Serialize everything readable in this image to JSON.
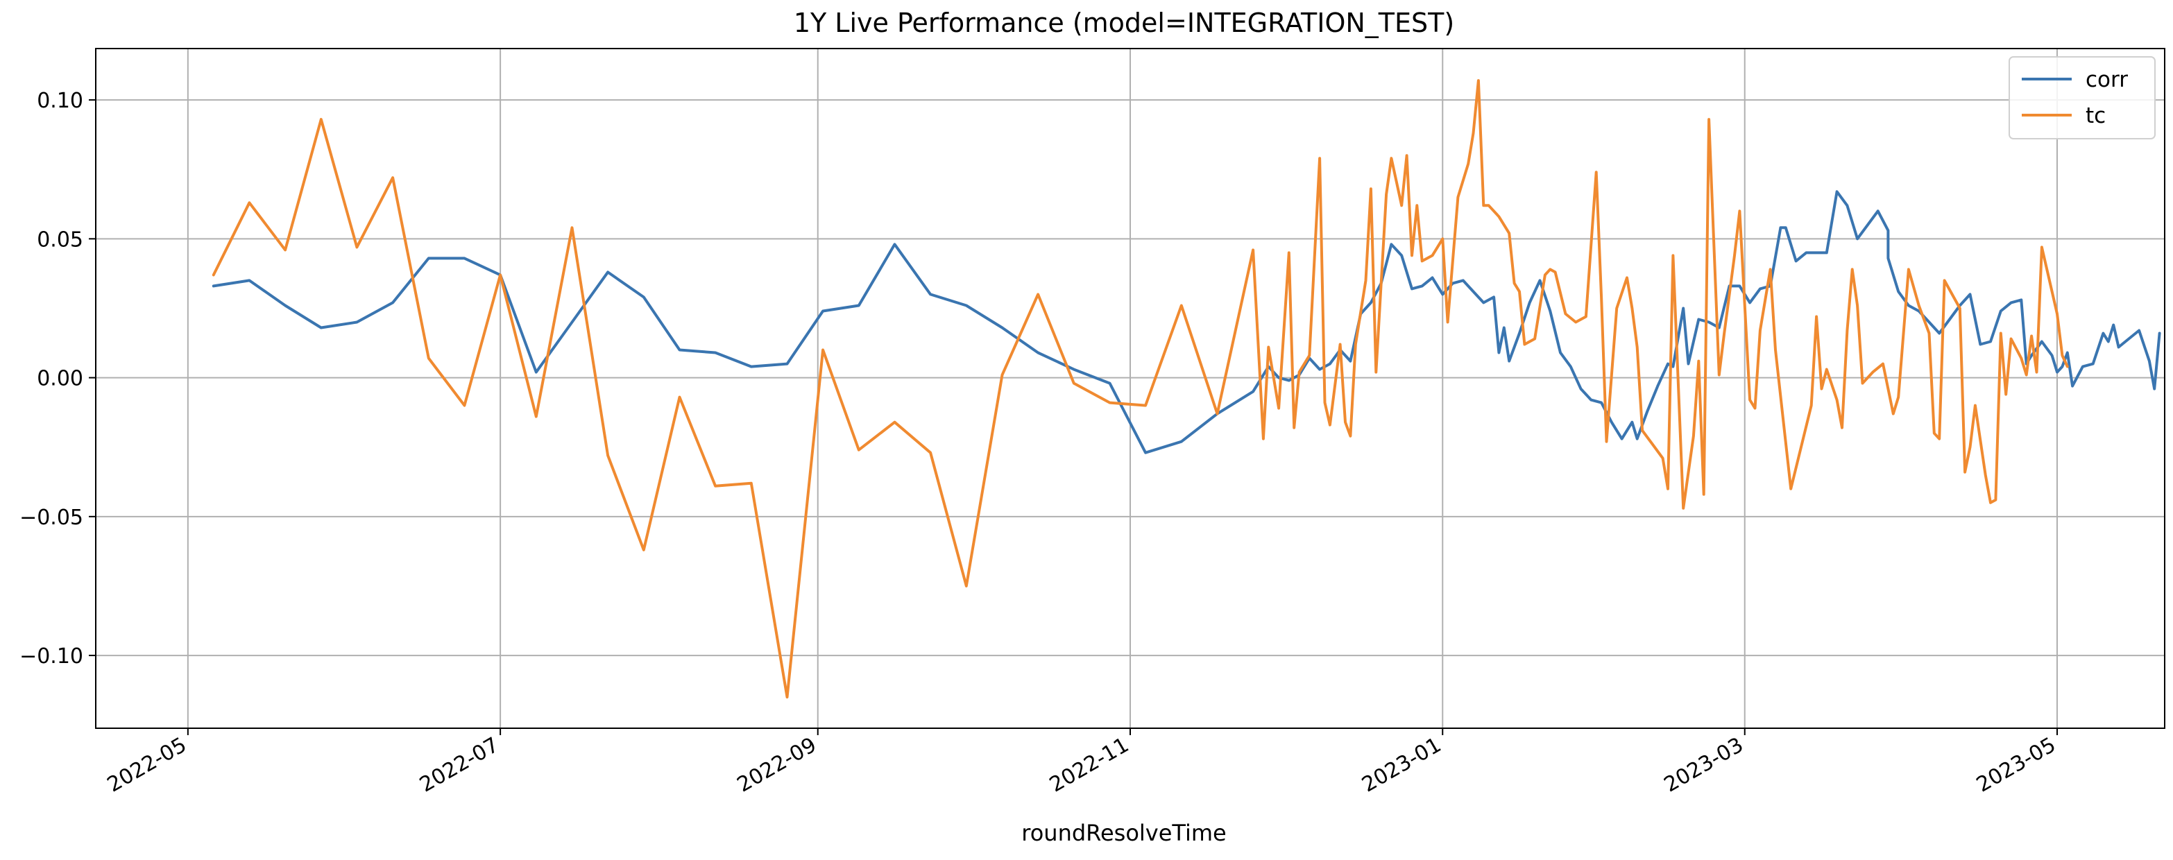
{
  "chart_data": {
    "type": "line",
    "title": "1Y Live Performance (model=INTEGRATION_TEST)",
    "xlabel": "roundResolveTime",
    "ylabel": "",
    "xlim": [
      "2022-04-13",
      "2023-05-22"
    ],
    "ylim": [
      -0.1262,
      0.1185
    ],
    "x_ticks": [
      "2022-05-01",
      "2022-07-01",
      "2022-09-01",
      "2022-11-01",
      "2023-01-01",
      "2023-03-01",
      "2023-05-01"
    ],
    "x_tick_labels": [
      "2022-05",
      "2022-07",
      "2022-09",
      "2022-11",
      "2023-01",
      "2023-03",
      "2023-05"
    ],
    "y_ticks": [
      -0.1,
      -0.05,
      0.0,
      0.05,
      0.1
    ],
    "y_tick_labels": [
      "−0.10",
      "−0.05",
      "0.00",
      "0.05",
      "0.10"
    ],
    "grid": true,
    "legend_position": "top-right",
    "series": [
      {
        "name": "corr",
        "color": "#3a75b0",
        "points": [
          [
            "2022-05-06",
            0.033
          ],
          [
            "2022-05-13",
            0.035
          ],
          [
            "2022-05-20",
            0.026
          ],
          [
            "2022-05-27",
            0.018
          ],
          [
            "2022-06-03",
            0.02
          ],
          [
            "2022-06-10",
            0.027
          ],
          [
            "2022-06-17",
            0.043
          ],
          [
            "2022-06-24",
            0.043
          ],
          [
            "2022-07-01",
            0.037
          ],
          [
            "2022-07-08",
            0.002
          ],
          [
            "2022-07-15",
            0.02
          ],
          [
            "2022-07-22",
            0.038
          ],
          [
            "2022-07-29",
            0.029
          ],
          [
            "2022-08-05",
            0.01
          ],
          [
            "2022-08-12",
            0.009
          ],
          [
            "2022-08-19",
            0.004
          ],
          [
            "2022-08-26",
            0.005
          ],
          [
            "2022-09-02",
            0.024
          ],
          [
            "2022-09-09",
            0.026
          ],
          [
            "2022-09-16",
            0.048
          ],
          [
            "2022-09-23",
            0.03
          ],
          [
            "2022-09-30",
            0.026
          ],
          [
            "2022-10-07",
            0.018
          ],
          [
            "2022-10-14",
            0.009
          ],
          [
            "2022-10-21",
            0.003
          ],
          [
            "2022-10-28",
            -0.002
          ],
          [
            "2022-11-04",
            -0.027
          ],
          [
            "2022-11-11",
            -0.023
          ],
          [
            "2022-11-18",
            -0.013
          ],
          [
            "2022-11-25",
            -0.005
          ],
          [
            "2022-11-28",
            0.004
          ],
          [
            "2022-11-30",
            0.0
          ],
          [
            "2022-12-02",
            -0.001
          ],
          [
            "2022-12-04",
            0.001
          ],
          [
            "2022-12-06",
            0.007
          ],
          [
            "2022-12-08",
            0.003
          ],
          [
            "2022-12-10",
            0.005
          ],
          [
            "2022-12-12",
            0.01
          ],
          [
            "2022-12-14",
            0.006
          ],
          [
            "2022-12-16",
            0.023
          ],
          [
            "2022-12-18",
            0.027
          ],
          [
            "2022-12-20",
            0.034
          ],
          [
            "2022-12-22",
            0.048
          ],
          [
            "2022-12-24",
            0.044
          ],
          [
            "2022-12-26",
            0.032
          ],
          [
            "2022-12-28",
            0.033
          ],
          [
            "2022-12-30",
            0.036
          ],
          [
            "2023-01-01",
            0.03
          ],
          [
            "2023-01-03",
            0.034
          ],
          [
            "2023-01-05",
            0.035
          ],
          [
            "2023-01-07",
            0.031
          ],
          [
            "2023-01-09",
            0.027
          ],
          [
            "2023-01-11",
            0.029
          ],
          [
            "2023-01-12",
            0.009
          ],
          [
            "2023-01-13",
            0.018
          ],
          [
            "2023-01-14",
            0.006
          ],
          [
            "2023-01-16",
            0.016
          ],
          [
            "2023-01-18",
            0.027
          ],
          [
            "2023-01-20",
            0.035
          ],
          [
            "2023-01-22",
            0.024
          ],
          [
            "2023-01-24",
            0.009
          ],
          [
            "2023-01-26",
            0.004
          ],
          [
            "2023-01-28",
            -0.004
          ],
          [
            "2023-01-30",
            -0.008
          ],
          [
            "2023-02-01",
            -0.009
          ],
          [
            "2023-02-03",
            -0.016
          ],
          [
            "2023-02-05",
            -0.022
          ],
          [
            "2023-02-07",
            -0.016
          ],
          [
            "2023-02-08",
            -0.022
          ],
          [
            "2023-02-10",
            -0.012
          ],
          [
            "2023-02-12",
            -0.003
          ],
          [
            "2023-02-14",
            0.005
          ],
          [
            "2023-02-15",
            0.004
          ],
          [
            "2023-02-17",
            0.025
          ],
          [
            "2023-02-18",
            0.005
          ],
          [
            "2023-02-20",
            0.021
          ],
          [
            "2023-02-22",
            0.02
          ],
          [
            "2023-02-24",
            0.018
          ],
          [
            "2023-02-26",
            0.033
          ],
          [
            "2023-02-28",
            0.033
          ],
          [
            "2023-03-02",
            0.027
          ],
          [
            "2023-03-04",
            0.032
          ],
          [
            "2023-03-06",
            0.033
          ],
          [
            "2023-03-08",
            0.054
          ],
          [
            "2023-03-09",
            0.054
          ],
          [
            "2023-03-11",
            0.042
          ],
          [
            "2023-03-13",
            0.045
          ],
          [
            "2023-03-15",
            0.045
          ],
          [
            "2023-03-17",
            0.045
          ],
          [
            "2023-03-19",
            0.067
          ],
          [
            "2023-03-21",
            0.062
          ],
          [
            "2023-03-23",
            0.05
          ],
          [
            "2023-03-25",
            0.055
          ],
          [
            "2023-03-27",
            0.06
          ],
          [
            "2023-03-29",
            0.053
          ],
          [
            "2023-03-29",
            0.043
          ],
          [
            "2023-03-31",
            0.031
          ],
          [
            "2023-04-02",
            0.026
          ],
          [
            "2023-04-04",
            0.024
          ],
          [
            "2023-04-06",
            0.02
          ],
          [
            "2023-04-08",
            0.016
          ],
          [
            "2023-04-10",
            0.021
          ],
          [
            "2023-04-12",
            0.026
          ],
          [
            "2023-04-14",
            0.03
          ],
          [
            "2023-04-16",
            0.012
          ],
          [
            "2023-04-18",
            0.013
          ],
          [
            "2023-04-20",
            0.024
          ],
          [
            "2023-04-22",
            0.027
          ],
          [
            "2023-04-24",
            0.028
          ],
          [
            "2023-04-25",
            0.005
          ],
          [
            "2023-04-26",
            0.008
          ],
          [
            "2023-04-28",
            0.013
          ],
          [
            "2023-04-30",
            0.008
          ],
          [
            "2023-05-01",
            0.002
          ],
          [
            "2023-05-02",
            0.004
          ],
          [
            "2023-05-03",
            0.009
          ],
          [
            "2023-05-04",
            -0.003
          ],
          [
            "2023-05-06",
            0.004
          ],
          [
            "2023-05-08",
            0.005
          ],
          [
            "2023-05-10",
            0.016
          ],
          [
            "2023-05-11",
            0.013
          ],
          [
            "2023-05-12",
            0.019
          ],
          [
            "2023-05-13",
            0.011
          ],
          [
            "2023-05-15",
            0.014
          ],
          [
            "2023-05-17",
            0.017
          ],
          [
            "2023-05-19",
            0.006
          ],
          [
            "2023-05-20",
            -0.004
          ],
          [
            "2023-05-21",
            0.016
          ]
        ]
      },
      {
        "name": "tc",
        "color": "#f08a30",
        "points": [
          [
            "2022-05-06",
            0.037
          ],
          [
            "2022-05-13",
            0.063
          ],
          [
            "2022-05-20",
            0.046
          ],
          [
            "2022-05-27",
            0.093
          ],
          [
            "2022-06-03",
            0.047
          ],
          [
            "2022-06-10",
            0.072
          ],
          [
            "2022-06-17",
            0.007
          ],
          [
            "2022-06-24",
            -0.01
          ],
          [
            "2022-07-01",
            0.037
          ],
          [
            "2022-07-08",
            -0.014
          ],
          [
            "2022-07-15",
            0.054
          ],
          [
            "2022-07-22",
            -0.028
          ],
          [
            "2022-07-29",
            -0.062
          ],
          [
            "2022-08-05",
            -0.007
          ],
          [
            "2022-08-12",
            -0.039
          ],
          [
            "2022-08-19",
            -0.038
          ],
          [
            "2022-08-26",
            -0.115
          ],
          [
            "2022-09-02",
            0.01
          ],
          [
            "2022-09-09",
            -0.026
          ],
          [
            "2022-09-16",
            -0.016
          ],
          [
            "2022-09-23",
            -0.027
          ],
          [
            "2022-09-30",
            -0.075
          ],
          [
            "2022-10-07",
            0.001
          ],
          [
            "2022-10-14",
            0.03
          ],
          [
            "2022-10-21",
            -0.002
          ],
          [
            "2022-10-28",
            -0.009
          ],
          [
            "2022-11-04",
            -0.01
          ],
          [
            "2022-11-11",
            0.026
          ],
          [
            "2022-11-18",
            -0.013
          ],
          [
            "2022-11-25",
            0.046
          ],
          [
            "2022-11-27",
            -0.022
          ],
          [
            "2022-11-28",
            0.011
          ],
          [
            "2022-11-30",
            -0.011
          ],
          [
            "2022-12-02",
            0.045
          ],
          [
            "2022-12-03",
            -0.018
          ],
          [
            "2022-12-04",
            0.002
          ],
          [
            "2022-12-06",
            0.008
          ],
          [
            "2022-12-08",
            0.079
          ],
          [
            "2022-12-09",
            -0.009
          ],
          [
            "2022-12-10",
            -0.017
          ],
          [
            "2022-12-12",
            0.012
          ],
          [
            "2022-12-13",
            -0.016
          ],
          [
            "2022-12-14",
            -0.021
          ],
          [
            "2022-12-15",
            0.012
          ],
          [
            "2022-12-17",
            0.035
          ],
          [
            "2022-12-18",
            0.068
          ],
          [
            "2022-12-19",
            0.002
          ],
          [
            "2022-12-21",
            0.066
          ],
          [
            "2022-12-22",
            0.079
          ],
          [
            "2022-12-24",
            0.062
          ],
          [
            "2022-12-25",
            0.08
          ],
          [
            "2022-12-26",
            0.044
          ],
          [
            "2022-12-27",
            0.062
          ],
          [
            "2022-12-28",
            0.042
          ],
          [
            "2022-12-30",
            0.044
          ],
          [
            "2023-01-01",
            0.05
          ],
          [
            "2023-01-02",
            0.02
          ],
          [
            "2023-01-04",
            0.065
          ],
          [
            "2023-01-06",
            0.077
          ],
          [
            "2023-01-07",
            0.088
          ],
          [
            "2023-01-08",
            0.107
          ],
          [
            "2023-01-09",
            0.062
          ],
          [
            "2023-01-10",
            0.062
          ],
          [
            "2023-01-12",
            0.058
          ],
          [
            "2023-01-14",
            0.052
          ],
          [
            "2023-01-15",
            0.034
          ],
          [
            "2023-01-16",
            0.031
          ],
          [
            "2023-01-17",
            0.012
          ],
          [
            "2023-01-19",
            0.014
          ],
          [
            "2023-01-21",
            0.037
          ],
          [
            "2023-01-22",
            0.039
          ],
          [
            "2023-01-23",
            0.038
          ],
          [
            "2023-01-25",
            0.023
          ],
          [
            "2023-01-27",
            0.02
          ],
          [
            "2023-01-29",
            0.022
          ],
          [
            "2023-01-31",
            0.074
          ],
          [
            "2023-02-01",
            0.029
          ],
          [
            "2023-02-02",
            -0.023
          ],
          [
            "2023-02-04",
            0.025
          ],
          [
            "2023-02-06",
            0.036
          ],
          [
            "2023-02-07",
            0.025
          ],
          [
            "2023-02-08",
            0.011
          ],
          [
            "2023-02-09",
            -0.019
          ],
          [
            "2023-02-11",
            -0.024
          ],
          [
            "2023-02-13",
            -0.029
          ],
          [
            "2023-02-14",
            -0.04
          ],
          [
            "2023-02-15",
            0.044
          ],
          [
            "2023-02-17",
            -0.047
          ],
          [
            "2023-02-19",
            -0.021
          ],
          [
            "2023-02-20",
            0.006
          ],
          [
            "2023-02-21",
            -0.042
          ],
          [
            "2023-02-22",
            0.093
          ],
          [
            "2023-02-24",
            0.001
          ],
          [
            "2023-02-25",
            0.016
          ],
          [
            "2023-02-27",
            0.044
          ],
          [
            "2023-02-28",
            0.06
          ],
          [
            "2023-03-02",
            -0.008
          ],
          [
            "2023-03-03",
            -0.011
          ],
          [
            "2023-03-04",
            0.017
          ],
          [
            "2023-03-06",
            0.039
          ],
          [
            "2023-03-07",
            0.01
          ],
          [
            "2023-03-10",
            -0.04
          ],
          [
            "2023-03-14",
            -0.01
          ],
          [
            "2023-03-15",
            0.022
          ],
          [
            "2023-03-16",
            -0.004
          ],
          [
            "2023-03-17",
            0.003
          ],
          [
            "2023-03-19",
            -0.008
          ],
          [
            "2023-03-20",
            -0.018
          ],
          [
            "2023-03-21",
            0.017
          ],
          [
            "2023-03-22",
            0.039
          ],
          [
            "2023-03-23",
            0.026
          ],
          [
            "2023-03-24",
            -0.002
          ],
          [
            "2023-03-26",
            0.002
          ],
          [
            "2023-03-28",
            0.005
          ],
          [
            "2023-03-30",
            -0.013
          ],
          [
            "2023-03-31",
            -0.007
          ],
          [
            "2023-04-02",
            0.039
          ],
          [
            "2023-04-04",
            0.026
          ],
          [
            "2023-04-06",
            0.016
          ],
          [
            "2023-04-07",
            -0.02
          ],
          [
            "2023-04-08",
            -0.022
          ],
          [
            "2023-04-09",
            0.035
          ],
          [
            "2023-04-12",
            0.025
          ],
          [
            "2023-04-13",
            -0.034
          ],
          [
            "2023-04-14",
            -0.025
          ],
          [
            "2023-04-15",
            -0.01
          ],
          [
            "2023-04-17",
            -0.035
          ],
          [
            "2023-04-18",
            -0.045
          ],
          [
            "2023-04-19",
            -0.044
          ],
          [
            "2023-04-20",
            0.016
          ],
          [
            "2023-04-21",
            -0.006
          ],
          [
            "2023-04-22",
            0.014
          ],
          [
            "2023-04-24",
            0.007
          ],
          [
            "2023-04-25",
            0.001
          ],
          [
            "2023-04-26",
            0.015
          ],
          [
            "2023-04-27",
            0.002
          ],
          [
            "2023-04-28",
            0.047
          ],
          [
            "2023-05-01",
            0.023
          ],
          [
            "2023-05-02",
            0.008
          ],
          [
            "2023-05-03",
            0.004
          ]
        ]
      }
    ]
  }
}
